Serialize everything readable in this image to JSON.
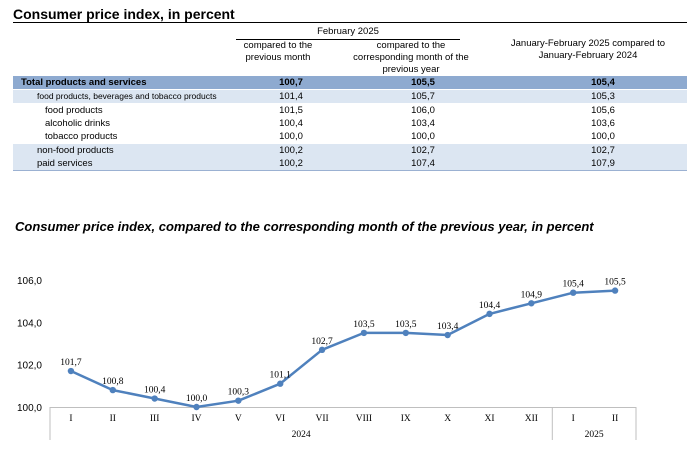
{
  "table": {
    "title": "Consumer price index, in percent",
    "group_header": "February 2025",
    "col1_header": "compared to the previous month",
    "col2_header": "compared to the corresponding month of the previous year",
    "col3_header": "January-February 2025  compared to January-February 2024",
    "rows": [
      {
        "label": "Total products and services",
        "v1": "100,7",
        "v2": "105,5",
        "v3": "105,4"
      },
      {
        "label": "food products, beverages and tobacco products",
        "v1": "101,4",
        "v2": "105,7",
        "v3": "105,3"
      },
      {
        "label": "food products",
        "v1": "101,5",
        "v2": "106,0",
        "v3": "105,6"
      },
      {
        "label": "alcoholic drinks",
        "v1": "100,4",
        "v2": "103,4",
        "v3": "103,6"
      },
      {
        "label": "tobacco products",
        "v1": "100,0",
        "v2": "100,0",
        "v3": "100,0"
      },
      {
        "label": "non-food products",
        "v1": "100,2",
        "v2": "102,7",
        "v3": "102,7"
      },
      {
        "label": "paid services",
        "v1": "100,2",
        "v2": "107,4",
        "v3": "107,9"
      }
    ]
  },
  "chart_title": "Consumer price index, compared to the corresponding month of the previous year, in percent",
  "chart_data": {
    "type": "line",
    "title": "Consumer price index, compared to the corresponding month of the previous year, in percent",
    "categories": [
      "I",
      "II",
      "III",
      "IV",
      "V",
      "VI",
      "VII",
      "VIII",
      "IX",
      "X",
      "XI",
      "XII",
      "I",
      "II"
    ],
    "year_groups": [
      {
        "label": "2024",
        "count": 12
      },
      {
        "label": "2025",
        "count": 2
      }
    ],
    "series": [
      {
        "values": [
          101.7,
          100.8,
          100.4,
          100.0,
          100.3,
          101.1,
          102.7,
          103.5,
          103.5,
          103.4,
          104.4,
          104.9,
          105.4,
          105.5
        ],
        "labels": [
          "101,7",
          "100,8",
          "100,4",
          "100,0",
          "100,3",
          "101,1",
          "102,7",
          "103,5",
          "103,5",
          "103,4",
          "104,4",
          "104,9",
          "105,4",
          "105,5"
        ]
      }
    ],
    "ylim": [
      100,
      106
    ],
    "yticks": [
      100,
      102,
      104,
      106
    ],
    "ytick_labels": [
      "100,0",
      "102,0",
      "104,0",
      "106,0"
    ],
    "line_color": "#4f81bd",
    "grid": false
  }
}
